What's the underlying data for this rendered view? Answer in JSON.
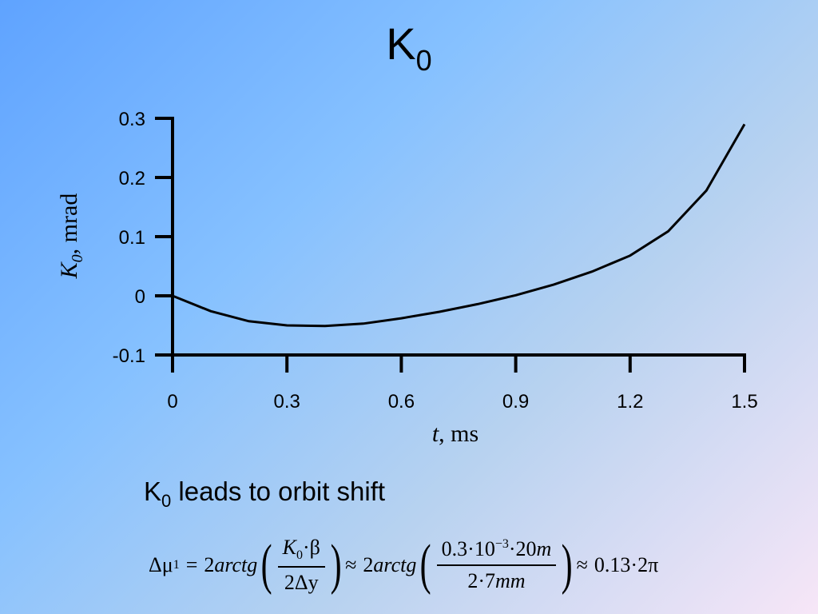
{
  "slide": {
    "title_main": "K",
    "title_sub": "0",
    "caption_main": "K",
    "caption_sub": "0",
    "caption_rest": " leads to orbit shift"
  },
  "formula": {
    "delta": "Δ",
    "mu": "μ",
    "mu_sub": "1",
    "eq": "=",
    "coef1": "2",
    "arctg1": "arctg",
    "frac1_K": "K",
    "frac1_K_sub": "0",
    "frac1_dot_beta": "·β",
    "frac1_den": "2Δy",
    "approx1": "≈",
    "coef2": "2",
    "arctg2": "arctg",
    "frac2_num_a": "0.3·10",
    "frac2_num_exp": "−3",
    "frac2_num_b": "·20",
    "frac2_num_m": "m",
    "frac2_den_a": "2·7",
    "frac2_den_mm": "mm",
    "approx2": "≈",
    "result": "0.13·2π"
  },
  "chart_data": {
    "type": "line",
    "title": "",
    "xlabel_italic": "t",
    "xlabel_rest": ", ms",
    "ylabel_italic": "K",
    "ylabel_sub": "0",
    "ylabel_rest": ", mrad",
    "xlim": [
      0,
      1.5
    ],
    "ylim": [
      -0.1,
      0.3
    ],
    "x_ticks": [
      0,
      0.3,
      0.6,
      0.9,
      1.2,
      1.5
    ],
    "x_tick_labels": [
      "0",
      "0.3",
      "0.6",
      "0.9",
      "1.2",
      "1.5"
    ],
    "y_ticks": [
      -0.1,
      0,
      0.1,
      0.2,
      0.3
    ],
    "y_tick_labels": [
      "-0.1",
      "0",
      "0.1",
      "0.2",
      "0.3"
    ],
    "grid": false,
    "series": [
      {
        "x": [
          0,
          0.1,
          0.2,
          0.3,
          0.4,
          0.5,
          0.6,
          0.7,
          0.8,
          0.9,
          1.0,
          1.1,
          1.2,
          1.3,
          1.4,
          1.5
        ],
        "y": [
          0,
          -0.026,
          -0.043,
          -0.05,
          -0.051,
          -0.047,
          -0.038,
          -0.027,
          -0.014,
          0.001,
          0.019,
          0.041,
          0.068,
          0.109,
          0.178,
          0.29
        ]
      }
    ]
  }
}
